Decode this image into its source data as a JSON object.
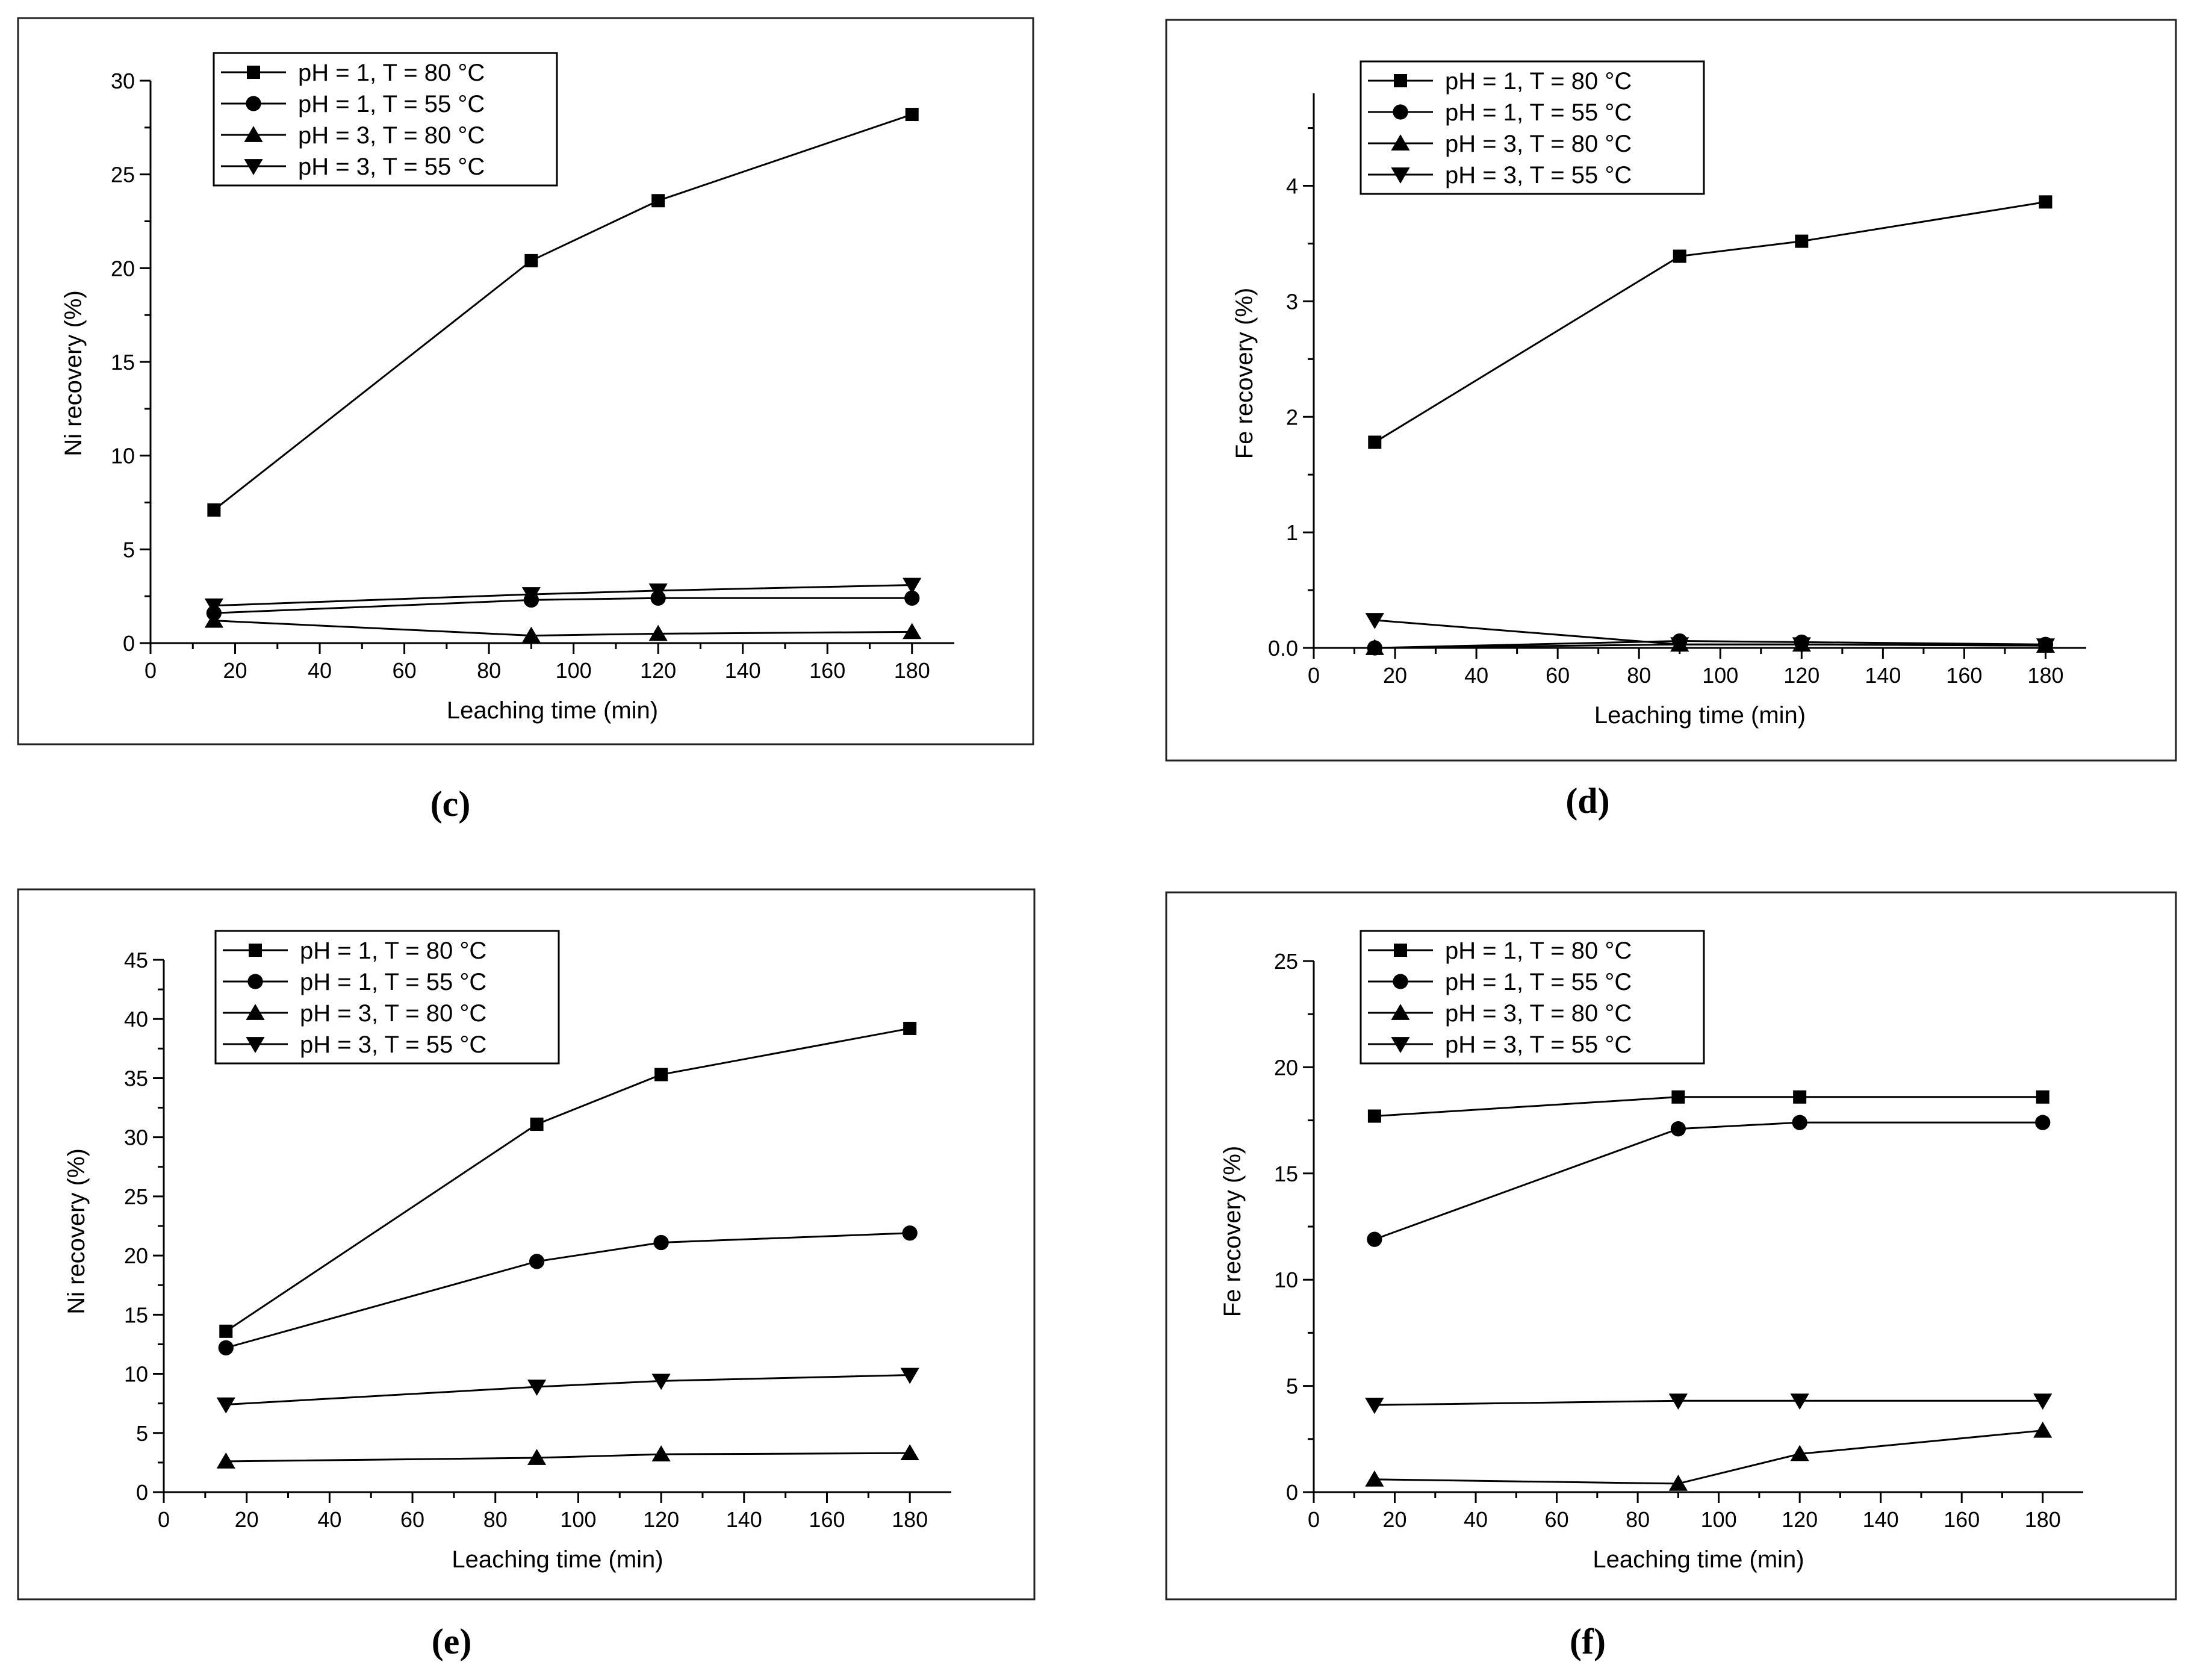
{
  "chart_data": [
    {
      "type": "line",
      "panel_label": "(c)",
      "xlabel": "Leaching time (min)",
      "ylabel": "Ni recovery (%)",
      "xlim": [
        0,
        190
      ],
      "ylim": [
        0,
        30
      ],
      "xticks": [
        0,
        20,
        40,
        60,
        80,
        100,
        120,
        140,
        160,
        180
      ],
      "yticks": [
        0,
        5,
        10,
        15,
        20,
        25,
        30
      ],
      "ytick_labels": [
        "0",
        "5",
        "10",
        "15",
        "20",
        "25",
        "30"
      ],
      "x": [
        15,
        90,
        120,
        180
      ],
      "series": [
        {
          "name": "pH = 1, T = 80 °C",
          "marker": "square",
          "values": [
            7.1,
            20.4,
            23.6,
            28.2
          ]
        },
        {
          "name": "pH = 1, T = 55 °C",
          "marker": "circle",
          "values": [
            1.6,
            2.3,
            2.4,
            2.4
          ]
        },
        {
          "name": "pH = 3, T = 80 °C",
          "marker": "triangle-up",
          "values": [
            1.2,
            0.4,
            0.5,
            0.6
          ]
        },
        {
          "name": "pH = 3, T = 55 °C",
          "marker": "triangle-down",
          "values": [
            2.0,
            2.6,
            2.8,
            3.1
          ]
        }
      ]
    },
    {
      "type": "line",
      "panel_label": "(d)",
      "xlabel": "Leaching time (min)",
      "ylabel": "Fe recovery (%)",
      "xlim": [
        0,
        190
      ],
      "ylim": [
        0,
        4.8
      ],
      "xticks": [
        0,
        20,
        40,
        60,
        80,
        100,
        120,
        140,
        160,
        180
      ],
      "yticks": [
        0,
        1,
        2,
        3,
        4
      ],
      "ytick_labels": [
        "0.0",
        "1",
        "2",
        "3",
        "4"
      ],
      "x": [
        15,
        90,
        120,
        180
      ],
      "series": [
        {
          "name": "pH = 1, T = 80 °C",
          "marker": "square",
          "values": [
            1.78,
            3.39,
            3.52,
            3.86
          ]
        },
        {
          "name": "pH = 1, T = 55 °C",
          "marker": "circle",
          "values": [
            0.0,
            0.06,
            0.05,
            0.03
          ]
        },
        {
          "name": "pH = 3, T = 80 °C",
          "marker": "triangle-up",
          "values": [
            0.0,
            0.03,
            0.03,
            0.02
          ]
        },
        {
          "name": "pH = 3, T = 55 °C",
          "marker": "triangle-down",
          "values": [
            0.24,
            0.03,
            0.03,
            0.02
          ]
        }
      ]
    },
    {
      "type": "line",
      "panel_label": "(e)",
      "xlabel": "Leaching time (min)",
      "ylabel": "Ni recovery (%)",
      "xlim": [
        0,
        190
      ],
      "ylim": [
        0,
        45
      ],
      "xticks": [
        0,
        20,
        40,
        60,
        80,
        100,
        120,
        140,
        160,
        180
      ],
      "yticks": [
        0,
        5,
        10,
        15,
        20,
        25,
        30,
        35,
        40,
        45
      ],
      "ytick_labels": [
        "0",
        "5",
        "10",
        "15",
        "20",
        "25",
        "30",
        "35",
        "40",
        "45"
      ],
      "x": [
        15,
        90,
        120,
        180
      ],
      "series": [
        {
          "name": "pH = 1, T = 80 °C",
          "marker": "square",
          "values": [
            13.6,
            31.1,
            35.3,
            39.2
          ]
        },
        {
          "name": "pH = 1, T = 55 °C",
          "marker": "circle",
          "values": [
            12.2,
            19.5,
            21.1,
            21.9
          ]
        },
        {
          "name": "pH = 3, T = 80 °C",
          "marker": "triangle-up",
          "values": [
            2.6,
            2.9,
            3.2,
            3.3
          ]
        },
        {
          "name": "pH = 3, T = 55 °C",
          "marker": "triangle-down",
          "values": [
            7.4,
            8.9,
            9.4,
            9.9
          ]
        }
      ]
    },
    {
      "type": "line",
      "panel_label": "(f)",
      "xlabel": "Leaching time (min)",
      "ylabel": "Fe recovery (%)",
      "xlim": [
        0,
        190
      ],
      "ylim": [
        0,
        25
      ],
      "xticks": [
        0,
        20,
        40,
        60,
        80,
        100,
        120,
        140,
        160,
        180
      ],
      "yticks": [
        0,
        5,
        10,
        15,
        20,
        25
      ],
      "ytick_labels": [
        "0",
        "5",
        "10",
        "15",
        "20",
        "25"
      ],
      "x": [
        15,
        90,
        120,
        180
      ],
      "series": [
        {
          "name": "pH = 1, T = 80 °C",
          "marker": "square",
          "values": [
            17.7,
            18.6,
            18.6,
            18.6
          ]
        },
        {
          "name": "pH = 1, T = 55 °C",
          "marker": "circle",
          "values": [
            11.9,
            17.1,
            17.4,
            17.4
          ]
        },
        {
          "name": "pH = 3, T = 80 °C",
          "marker": "triangle-up",
          "values": [
            0.6,
            0.4,
            1.8,
            2.9
          ]
        },
        {
          "name": "pH = 3, T = 55 °C",
          "marker": "triangle-down",
          "values": [
            4.1,
            4.3,
            4.3,
            4.3
          ]
        }
      ]
    }
  ]
}
